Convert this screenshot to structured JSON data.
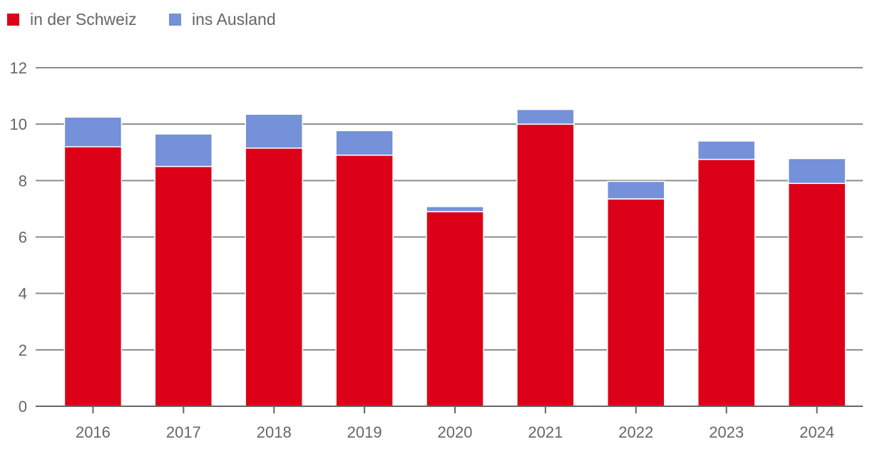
{
  "chart_data": {
    "type": "bar",
    "stacked": true,
    "title": "",
    "xlabel": "",
    "ylabel": "",
    "categories": [
      "2016",
      "2017",
      "2018",
      "2019",
      "2020",
      "2021",
      "2022",
      "2023",
      "2024"
    ],
    "series": [
      {
        "name": "in der Schweiz",
        "color": "#dc0018",
        "values": [
          9.2,
          8.5,
          9.15,
          8.9,
          6.9,
          10.0,
          7.35,
          8.75,
          7.9
        ]
      },
      {
        "name": "ins Ausland",
        "color": "#7491d9",
        "values": [
          1.05,
          1.15,
          1.2,
          0.87,
          0.18,
          0.52,
          0.62,
          0.65,
          0.88
        ]
      }
    ],
    "ylim": [
      0,
      12
    ],
    "yticks": [
      0,
      2,
      4,
      6,
      8,
      10,
      12
    ],
    "grid": true,
    "legend_position": "top-left"
  }
}
